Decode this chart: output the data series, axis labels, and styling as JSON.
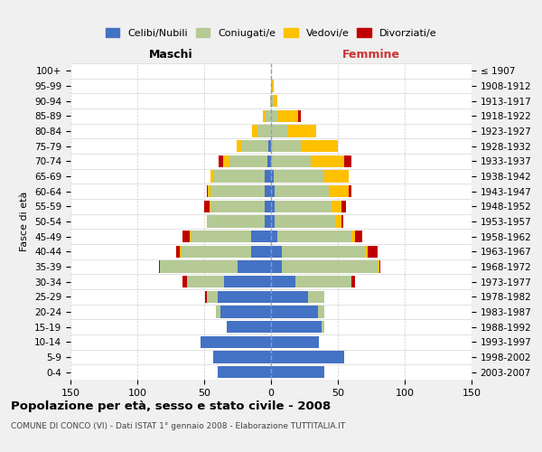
{
  "age_groups": [
    "0-4",
    "5-9",
    "10-14",
    "15-19",
    "20-24",
    "25-29",
    "30-34",
    "35-39",
    "40-44",
    "45-49",
    "50-54",
    "55-59",
    "60-64",
    "65-69",
    "70-74",
    "75-79",
    "80-84",
    "85-89",
    "90-94",
    "95-99",
    "100+"
  ],
  "birth_years": [
    "2003-2007",
    "1998-2002",
    "1993-1997",
    "1988-1992",
    "1983-1987",
    "1978-1982",
    "1973-1977",
    "1968-1972",
    "1963-1967",
    "1958-1962",
    "1953-1957",
    "1948-1952",
    "1943-1947",
    "1938-1942",
    "1933-1937",
    "1928-1932",
    "1923-1927",
    "1918-1922",
    "1913-1917",
    "1908-1912",
    "≤ 1907"
  ],
  "male_celibe": [
    40,
    43,
    53,
    33,
    38,
    40,
    35,
    25,
    15,
    15,
    5,
    5,
    5,
    5,
    3,
    2,
    0,
    0,
    0,
    0,
    0
  ],
  "male_coniugato": [
    0,
    0,
    0,
    0,
    3,
    8,
    28,
    58,
    52,
    45,
    42,
    40,
    40,
    38,
    28,
    20,
    10,
    4,
    1,
    0,
    0
  ],
  "male_vedovo": [
    0,
    0,
    0,
    0,
    0,
    0,
    0,
    0,
    1,
    1,
    1,
    1,
    2,
    2,
    5,
    4,
    4,
    2,
    0,
    0,
    0
  ],
  "male_divorziato": [
    0,
    0,
    0,
    0,
    0,
    1,
    3,
    1,
    3,
    5,
    0,
    4,
    1,
    0,
    3,
    0,
    0,
    0,
    0,
    0,
    0
  ],
  "female_nubile": [
    40,
    55,
    36,
    38,
    35,
    28,
    18,
    8,
    8,
    5,
    3,
    3,
    3,
    2,
    0,
    0,
    0,
    0,
    0,
    0,
    0
  ],
  "female_coniugata": [
    0,
    0,
    0,
    2,
    5,
    12,
    42,
    72,
    62,
    55,
    45,
    42,
    40,
    38,
    30,
    22,
    12,
    5,
    2,
    1,
    0
  ],
  "female_vedova": [
    0,
    0,
    0,
    0,
    0,
    0,
    0,
    1,
    2,
    3,
    5,
    8,
    15,
    18,
    25,
    28,
    22,
    15,
    3,
    1,
    0
  ],
  "female_divorziata": [
    0,
    0,
    0,
    0,
    0,
    0,
    3,
    1,
    8,
    5,
    1,
    3,
    2,
    0,
    5,
    0,
    0,
    2,
    0,
    0,
    0
  ],
  "color_celibe": "#4472c4",
  "color_coniugato": "#b5c994",
  "color_vedovo": "#ffc000",
  "color_divorziato": "#c00000",
  "xlim": 150,
  "xticks": [
    -150,
    -100,
    -50,
    0,
    50,
    100,
    150
  ],
  "title": "Popolazione per età, sesso e stato civile - 2008",
  "subtitle": "COMUNE DI CONCO (VI) - Dati ISTAT 1° gennaio 2008 - Elaborazione TUTTITALIA.IT",
  "header_left": "Maschi",
  "header_right": "Femmine",
  "ylabel_left": "Fasce di età",
  "legend_labels": [
    "Celibi/Nubili",
    "Coniugati/e",
    "Vedovi/e",
    "Divorziati/e"
  ],
  "bg_color": "#f0f0f0",
  "plot_bg": "#ffffff"
}
